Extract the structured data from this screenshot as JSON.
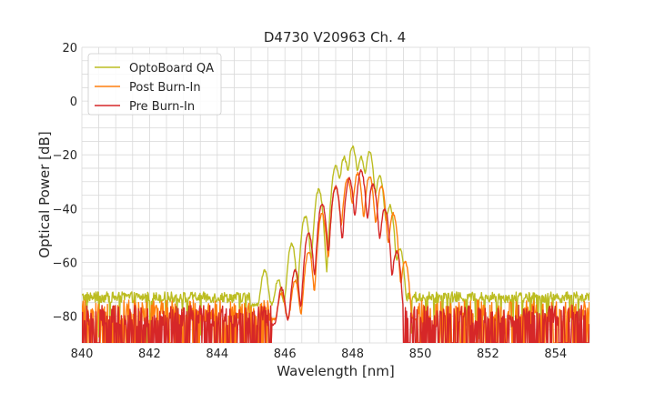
{
  "chart_data": {
    "type": "line",
    "title": "D4730 V20963 Ch. 4",
    "xlabel": "Wavelength [nm]",
    "ylabel": "Optical Power [dB]",
    "xlim": [
      840,
      855
    ],
    "ylim": [
      -90,
      20
    ],
    "xticks": [
      840,
      842,
      844,
      846,
      848,
      850,
      852,
      854
    ],
    "yticks": [
      20,
      0,
      -20,
      -40,
      -60,
      -80
    ],
    "xtick_labels": [
      "840",
      "842",
      "844",
      "846",
      "848",
      "850",
      "852",
      "854"
    ],
    "ytick_labels": [
      "20",
      "0",
      "−20",
      "−40",
      "−60",
      "−80"
    ],
    "grid": true,
    "legend_position": "top-left",
    "series": [
      {
        "name": "OptoBoard QA",
        "color": "#bcbd22",
        "peaks": [
          [
            845.4,
            -63
          ],
          [
            845.8,
            -67
          ],
          [
            846.2,
            -53
          ],
          [
            846.6,
            -43
          ],
          [
            847.0,
            -33
          ],
          [
            847.5,
            -24
          ],
          [
            847.75,
            -21
          ],
          [
            848.0,
            -17
          ],
          [
            848.25,
            -21
          ],
          [
            848.5,
            -19
          ],
          [
            848.8,
            -28
          ],
          [
            849.1,
            -39
          ],
          [
            849.4,
            -55
          ]
        ],
        "noise_floor": -73,
        "edges": [
          845.0,
          849.6
        ]
      },
      {
        "name": "Post Burn-In",
        "color": "#ff7f0e",
        "peaks": [
          [
            845.9,
            -72
          ],
          [
            846.3,
            -67
          ],
          [
            846.7,
            -56
          ],
          [
            847.1,
            -42
          ],
          [
            847.5,
            -32
          ],
          [
            847.85,
            -29
          ],
          [
            848.15,
            -27
          ],
          [
            848.5,
            -28
          ],
          [
            848.85,
            -32
          ],
          [
            849.2,
            -42
          ],
          [
            849.55,
            -60
          ]
        ],
        "noise_floor": -78,
        "edges": [
          845.6,
          849.9
        ]
      },
      {
        "name": "Pre Burn-In",
        "color": "#d62728",
        "peaks": [
          [
            845.9,
            -70
          ],
          [
            846.3,
            -63
          ],
          [
            846.7,
            -49
          ],
          [
            847.1,
            -38
          ],
          [
            847.5,
            -32
          ],
          [
            847.9,
            -29
          ],
          [
            848.25,
            -26
          ],
          [
            848.6,
            -31
          ],
          [
            848.95,
            -40
          ],
          [
            849.3,
            -56
          ]
        ],
        "noise_floor": -80,
        "edges": [
          845.6,
          849.5
        ]
      }
    ]
  }
}
